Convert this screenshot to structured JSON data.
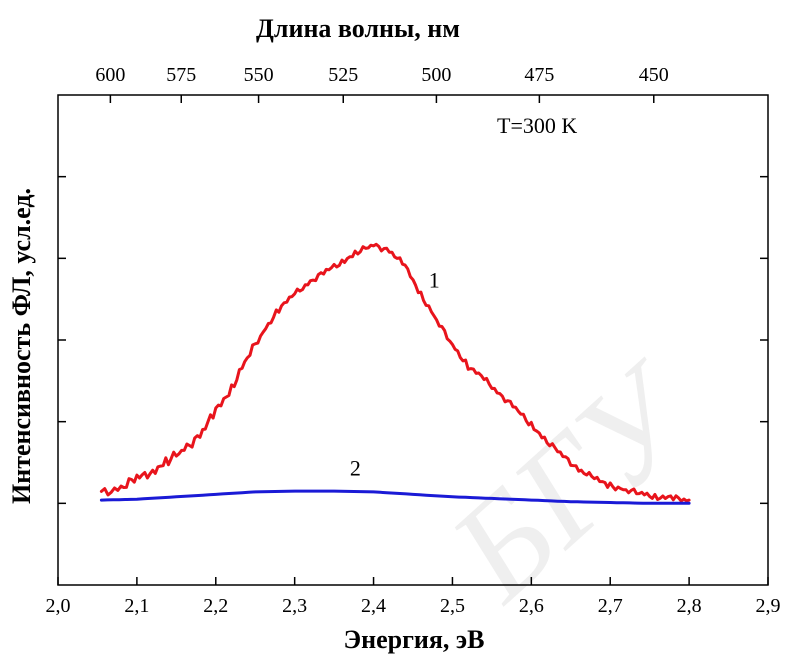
{
  "chart_data": {
    "type": "line",
    "xlabel": "Энергия, эВ",
    "ylabel": "Интенсивность ФЛ, усл.ед.",
    "top_axis_label": "Длина волны, нм",
    "xlim": [
      2.0,
      2.9
    ],
    "ylim": [
      -0.5,
      2.5
    ],
    "x_ticks": [
      2.0,
      2.1,
      2.2,
      2.3,
      2.4,
      2.5,
      2.6,
      2.7,
      2.8,
      2.9
    ],
    "x_tick_labels": [
      "2,0",
      "2,1",
      "2,2",
      "2,3",
      "2,4",
      "2,5",
      "2,6",
      "2,7",
      "2,8",
      "2,9"
    ],
    "top_ticks": [
      600,
      575,
      550,
      525,
      500,
      475,
      450
    ],
    "top_tick_labels": [
      "600",
      "575",
      "550",
      "525",
      "500",
      "475",
      "450"
    ],
    "y_ticks": [
      0,
      0.5,
      1.0,
      1.5,
      2.0,
      2.5
    ],
    "y_tick_labels_shown": false,
    "annotation": "T=300 K",
    "series": [
      {
        "name": "1",
        "color": "#e8141c",
        "x": [
          2.055,
          2.08,
          2.1,
          2.12,
          2.14,
          2.16,
          2.18,
          2.2,
          2.22,
          2.24,
          2.26,
          2.28,
          2.3,
          2.32,
          2.34,
          2.36,
          2.38,
          2.4,
          2.42,
          2.44,
          2.46,
          2.48,
          2.5,
          2.52,
          2.54,
          2.56,
          2.58,
          2.6,
          2.62,
          2.64,
          2.66,
          2.68,
          2.7,
          2.72,
          2.74,
          2.76,
          2.78,
          2.8
        ],
        "y": [
          0.06,
          0.1,
          0.15,
          0.2,
          0.26,
          0.33,
          0.42,
          0.56,
          0.71,
          0.89,
          1.05,
          1.19,
          1.28,
          1.36,
          1.42,
          1.48,
          1.54,
          1.58,
          1.55,
          1.45,
          1.28,
          1.12,
          0.97,
          0.84,
          0.76,
          0.67,
          0.58,
          0.48,
          0.38,
          0.29,
          0.21,
          0.15,
          0.11,
          0.08,
          0.06,
          0.04,
          0.03,
          0.02
        ]
      },
      {
        "name": "2",
        "color": "#1a1ad6",
        "x": [
          2.055,
          2.1,
          2.15,
          2.2,
          2.25,
          2.3,
          2.35,
          2.4,
          2.45,
          2.5,
          2.55,
          2.6,
          2.65,
          2.7,
          2.75,
          2.8
        ],
        "y": [
          0.02,
          0.025,
          0.04,
          0.055,
          0.07,
          0.075,
          0.075,
          0.07,
          0.055,
          0.04,
          0.03,
          0.02,
          0.01,
          0.005,
          0.0,
          0.0
        ]
      }
    ],
    "series_labels": [
      {
        "text": "1",
        "x": 2.47,
        "y": 1.32
      },
      {
        "text": "2",
        "x": 2.37,
        "y": 0.17
      }
    ],
    "watermark": "БГУ"
  }
}
